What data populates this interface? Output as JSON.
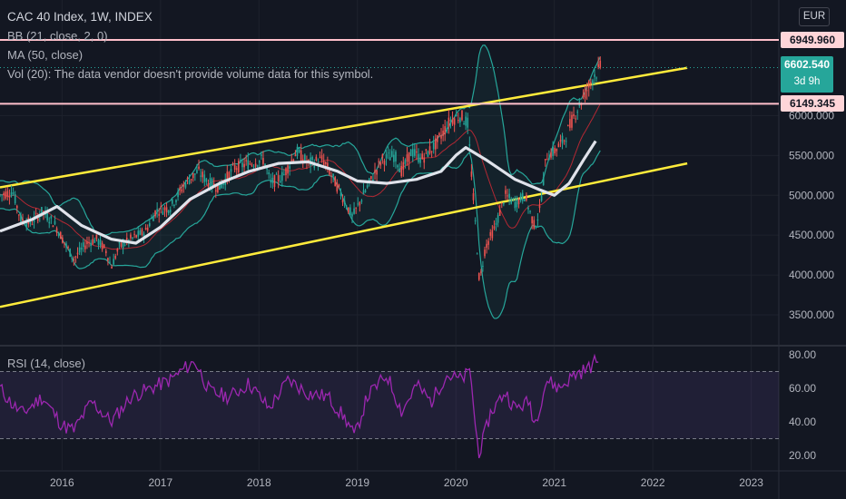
{
  "header": {
    "title": "CAC 40 Index, 1W, INDEX",
    "indicators": [
      "BB (21, close, 2, 0)",
      "MA (50, close)",
      "Vol (20): The data vendor doesn't provide volume data for this symbol."
    ],
    "rsi_label": "RSI (14, close)"
  },
  "currency": "EUR",
  "price_tags": {
    "upper_line": "6949.960",
    "last_price": "6602.540",
    "countdown": "3d 9h",
    "lower_line": "6149.345"
  },
  "colors": {
    "background": "#131722",
    "up": "#26a69a",
    "down": "#ef5350",
    "channel": "#ffeb3b",
    "bollinger": "#26a69a",
    "ma50": "#e0e3eb",
    "hline": "#ffc0cb",
    "rsi": "#9c27b0"
  },
  "chart_data": [
    {
      "type": "candlestick",
      "title": "CAC 40 Index, 1W, INDEX",
      "x_tick_labels": [
        "2016",
        "2017",
        "2018",
        "2019",
        "2020",
        "2021",
        "2022",
        "2023"
      ],
      "y_tick_labels": [
        "3500.000",
        "4000.000",
        "4500.000",
        "5000.000",
        "5500.000",
        "6000.000"
      ],
      "ylim": [
        3200,
        7350
      ],
      "xlim": [
        2015.37,
        2023.28
      ],
      "log_scale": false,
      "grid": true,
      "horizontal_lines": [
        6949.96,
        6149.345
      ],
      "last_price": 6602.54,
      "trend_channel": {
        "upper": [
          [
            2015.37,
            5100
          ],
          [
            2022.35,
            6600
          ]
        ],
        "lower": [
          [
            2015.37,
            3600
          ],
          [
            2022.35,
            5400
          ]
        ]
      },
      "price_path": [
        [
          2015.37,
          5000
        ],
        [
          2015.5,
          5050
        ],
        [
          2015.58,
          4700
        ],
        [
          2015.68,
          4650
        ],
        [
          2015.8,
          4800
        ],
        [
          2015.92,
          4650
        ],
        [
          2016.05,
          4350
        ],
        [
          2016.12,
          4200
        ],
        [
          2016.25,
          4400
        ],
        [
          2016.35,
          4450
        ],
        [
          2016.45,
          4300
        ],
        [
          2016.5,
          4100
        ],
        [
          2016.58,
          4350
        ],
        [
          2016.7,
          4450
        ],
        [
          2016.85,
          4550
        ],
        [
          2016.95,
          4800
        ],
        [
          2017.1,
          4850
        ],
        [
          2017.25,
          5150
        ],
        [
          2017.38,
          5300
        ],
        [
          2017.5,
          5150
        ],
        [
          2017.6,
          5100
        ],
        [
          2017.75,
          5350
        ],
        [
          2017.9,
          5400
        ],
        [
          2018.05,
          5450
        ],
        [
          2018.12,
          5150
        ],
        [
          2018.25,
          5250
        ],
        [
          2018.38,
          5550
        ],
        [
          2018.5,
          5400
        ],
        [
          2018.65,
          5450
        ],
        [
          2018.8,
          5100
        ],
        [
          2018.95,
          4730
        ],
        [
          2019.1,
          5100
        ],
        [
          2019.25,
          5450
        ],
        [
          2019.38,
          5500
        ],
        [
          2019.45,
          5300
        ],
        [
          2019.55,
          5550
        ],
        [
          2019.65,
          5450
        ],
        [
          2019.8,
          5650
        ],
        [
          2019.95,
          5950
        ],
        [
          2020.05,
          6000
        ],
        [
          2020.12,
          5900
        ],
        [
          2020.2,
          4600
        ],
        [
          2020.24,
          3900
        ],
        [
          2020.3,
          4350
        ],
        [
          2020.4,
          4600
        ],
        [
          2020.5,
          5000
        ],
        [
          2020.6,
          4900
        ],
        [
          2020.7,
          5000
        ],
        [
          2020.8,
          4600
        ],
        [
          2020.85,
          4800
        ],
        [
          2020.92,
          5500
        ],
        [
          2021.0,
          5550
        ],
        [
          2021.1,
          5700
        ],
        [
          2021.2,
          6000
        ],
        [
          2021.3,
          6250
        ],
        [
          2021.4,
          6500
        ],
        [
          2021.47,
          6602.54
        ]
      ],
      "ma50_path": [
        [
          2015.37,
          4550
        ],
        [
          2015.7,
          4700
        ],
        [
          2015.95,
          4860
        ],
        [
          2016.2,
          4620
        ],
        [
          2016.5,
          4450
        ],
        [
          2016.75,
          4400
        ],
        [
          2017.0,
          4600
        ],
        [
          2017.3,
          4950
        ],
        [
          2017.6,
          5150
        ],
        [
          2017.9,
          5300
        ],
        [
          2018.2,
          5400
        ],
        [
          2018.5,
          5420
        ],
        [
          2018.8,
          5300
        ],
        [
          2019.0,
          5180
        ],
        [
          2019.3,
          5150
        ],
        [
          2019.6,
          5200
        ],
        [
          2019.85,
          5300
        ],
        [
          2020.0,
          5500
        ],
        [
          2020.1,
          5600
        ],
        [
          2020.3,
          5450
        ],
        [
          2020.6,
          5200
        ],
        [
          2020.85,
          5070
        ],
        [
          2021.0,
          5000
        ],
        [
          2021.15,
          5150
        ],
        [
          2021.3,
          5450
        ],
        [
          2021.42,
          5680
        ]
      ]
    },
    {
      "type": "line",
      "title": "RSI (14, close)",
      "y_tick_labels": [
        "20.00",
        "40.00",
        "60.00",
        "80.00"
      ],
      "ylim": [
        15,
        82
      ],
      "band": [
        30,
        70
      ],
      "values": [
        [
          2015.37,
          60
        ],
        [
          2015.5,
          50
        ],
        [
          2015.6,
          45
        ],
        [
          2015.8,
          55
        ],
        [
          2016.0,
          38
        ],
        [
          2016.12,
          35
        ],
        [
          2016.3,
          52
        ],
        [
          2016.5,
          40
        ],
        [
          2016.7,
          55
        ],
        [
          2016.9,
          60
        ],
        [
          2017.1,
          65
        ],
        [
          2017.25,
          72
        ],
        [
          2017.35,
          76
        ],
        [
          2017.5,
          58
        ],
        [
          2017.7,
          55
        ],
        [
          2017.9,
          63
        ],
        [
          2018.1,
          48
        ],
        [
          2018.3,
          65
        ],
        [
          2018.5,
          57
        ],
        [
          2018.7,
          55
        ],
        [
          2018.9,
          40
        ],
        [
          2018.97,
          31
        ],
        [
          2019.1,
          55
        ],
        [
          2019.3,
          68
        ],
        [
          2019.45,
          46
        ],
        [
          2019.6,
          62
        ],
        [
          2019.75,
          52
        ],
        [
          2019.9,
          68
        ],
        [
          2020.05,
          65
        ],
        [
          2020.15,
          70
        ],
        [
          2020.2,
          35
        ],
        [
          2020.24,
          21
        ],
        [
          2020.35,
          45
        ],
        [
          2020.5,
          58
        ],
        [
          2020.6,
          48
        ],
        [
          2020.75,
          52
        ],
        [
          2020.8,
          38
        ],
        [
          2020.92,
          65
        ],
        [
          2021.05,
          60
        ],
        [
          2021.2,
          68
        ],
        [
          2021.35,
          72
        ],
        [
          2021.45,
          78
        ]
      ]
    }
  ]
}
